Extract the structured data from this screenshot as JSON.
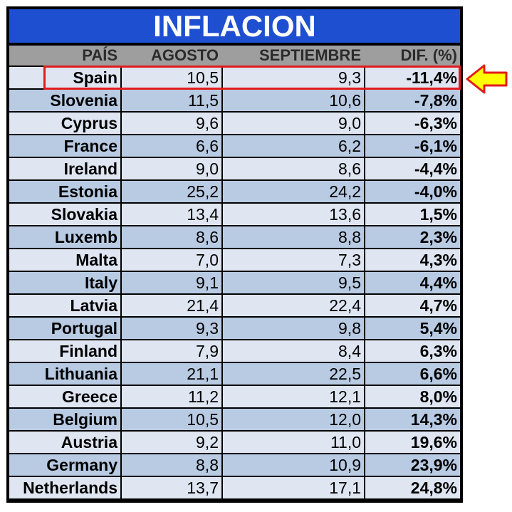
{
  "title": "INFLACION",
  "colors": {
    "title_bg": "#1f4fd1",
    "header_bg": "#9e9e9e",
    "row_light": "#dfe6f2",
    "row_dark": "#b8cbe3",
    "highlight": "#e21b1b",
    "arrow_fill": "#ffff00",
    "arrow_stroke": "#e21b1b"
  },
  "highlight_arrow_icon": "left-arrow-icon",
  "chart_data": {
    "type": "table",
    "title": "INFLACION",
    "columns": [
      "PAÍS",
      "AGOSTO",
      "SEPTIEMBRE",
      "DIF. (%)"
    ],
    "highlighted_row": "Spain",
    "rows": [
      {
        "country": "Spain",
        "agosto": "10,5",
        "septiembre": "9,3",
        "dif": "-11,4%"
      },
      {
        "country": "Slovenia",
        "agosto": "11,5",
        "septiembre": "10,6",
        "dif": "-7,8%"
      },
      {
        "country": "Cyprus",
        "agosto": "9,6",
        "septiembre": "9,0",
        "dif": "-6,3%"
      },
      {
        "country": "France",
        "agosto": "6,6",
        "septiembre": "6,2",
        "dif": "-6,1%"
      },
      {
        "country": "Ireland",
        "agosto": "9,0",
        "septiembre": "8,6",
        "dif": "-4,4%"
      },
      {
        "country": "Estonia",
        "agosto": "25,2",
        "septiembre": "24,2",
        "dif": "-4,0%"
      },
      {
        "country": "Slovakia",
        "agosto": "13,4",
        "septiembre": "13,6",
        "dif": "1,5%"
      },
      {
        "country": "Luxemb",
        "agosto": "8,6",
        "septiembre": "8,8",
        "dif": "2,3%"
      },
      {
        "country": "Malta",
        "agosto": "7,0",
        "septiembre": "7,3",
        "dif": "4,3%"
      },
      {
        "country": "Italy",
        "agosto": "9,1",
        "septiembre": "9,5",
        "dif": "4,4%"
      },
      {
        "country": "Latvia",
        "agosto": "21,4",
        "septiembre": "22,4",
        "dif": "4,7%"
      },
      {
        "country": "Portugal",
        "agosto": "9,3",
        "septiembre": "9,8",
        "dif": "5,4%"
      },
      {
        "country": "Finland",
        "agosto": "7,9",
        "septiembre": "8,4",
        "dif": "6,3%"
      },
      {
        "country": "Lithuania",
        "agosto": "21,1",
        "septiembre": "22,5",
        "dif": "6,6%"
      },
      {
        "country": "Greece",
        "agosto": "11,2",
        "septiembre": "12,1",
        "dif": "8,0%"
      },
      {
        "country": "Belgium",
        "agosto": "10,5",
        "septiembre": "12,0",
        "dif": "14,3%"
      },
      {
        "country": "Austria",
        "agosto": "9,2",
        "septiembre": "11,0",
        "dif": "19,6%"
      },
      {
        "country": "Germany",
        "agosto": "8,8",
        "septiembre": "10,9",
        "dif": "23,9%"
      },
      {
        "country": "Netherlands",
        "agosto": "13,7",
        "septiembre": "17,1",
        "dif": "24,8%"
      }
    ]
  }
}
